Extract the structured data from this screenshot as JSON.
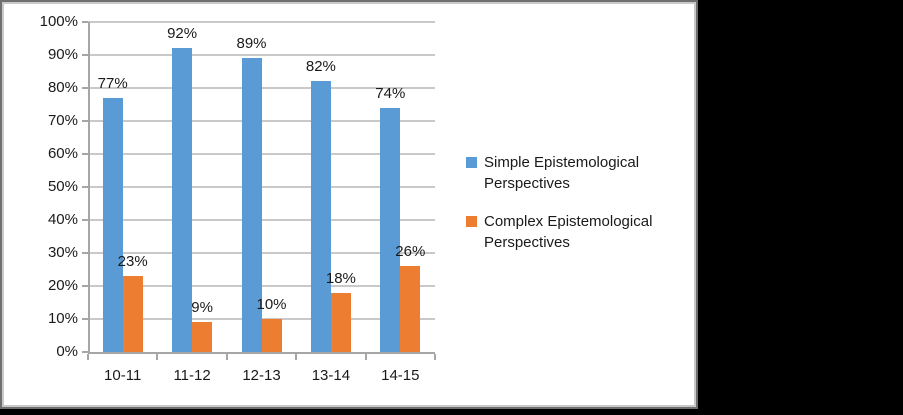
{
  "chart_data": {
    "type": "bar",
    "title": "",
    "xlabel": "",
    "ylabel": "",
    "categories": [
      "10-11",
      "11-12",
      "12-13",
      "13-14",
      "14-15"
    ],
    "series": [
      {
        "name": "Simple Epistemological Perspectives",
        "color": "#5b9bd5",
        "values": [
          77,
          92,
          89,
          82,
          74
        ],
        "data_labels": [
          "77%",
          "92%",
          "89%",
          "82%",
          "74%"
        ]
      },
      {
        "name": "Complex Epistemological Perspectives",
        "color": "#ed7d31",
        "values": [
          23,
          9,
          10,
          18,
          26
        ],
        "data_labels": [
          "23%",
          "9%",
          "10%",
          "18%",
          "26%"
        ]
      }
    ],
    "y_axis": {
      "min": 0,
      "max": 100,
      "step": 10,
      "tick_labels": [
        "0%",
        "10%",
        "20%",
        "30%",
        "40%",
        "50%",
        "60%",
        "70%",
        "80%",
        "90%",
        "100%"
      ]
    },
    "grid": true,
    "legend_position": "right",
    "legend": [
      {
        "label": "Simple Epistemological Perspectives",
        "color": "#5b9bd5"
      },
      {
        "label": "Complex Epistemological Perspectives",
        "color": "#ed7d31"
      }
    ]
  }
}
